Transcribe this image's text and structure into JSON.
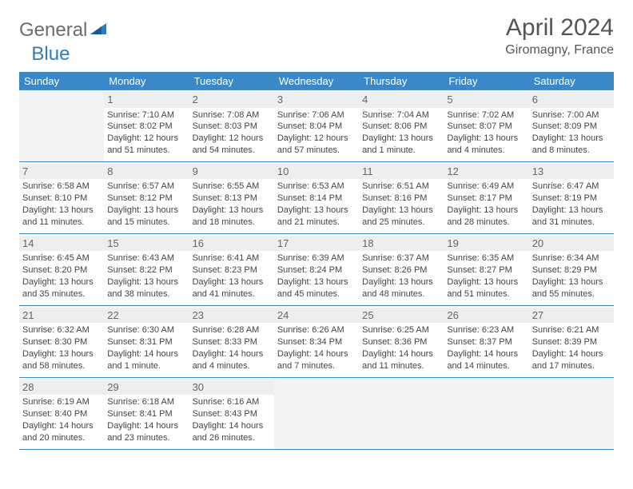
{
  "brand": {
    "word1": "General",
    "word2": "Blue"
  },
  "title": "April 2024",
  "location": "Giromagny, France",
  "colors": {
    "accent": "#3a88c8",
    "logo_gray": "#6b6b6b",
    "logo_blue": "#2f7cc0",
    "text": "#444444",
    "daynum_bg": "#eeeeee",
    "empty_bg": "#f3f3f3"
  },
  "dow": [
    "Sunday",
    "Monday",
    "Tuesday",
    "Wednesday",
    "Thursday",
    "Friday",
    "Saturday"
  ],
  "weeks": [
    [
      null,
      {
        "n": "1",
        "sr": "7:10 AM",
        "ss": "8:02 PM",
        "dl": "12 hours and 51 minutes."
      },
      {
        "n": "2",
        "sr": "7:08 AM",
        "ss": "8:03 PM",
        "dl": "12 hours and 54 minutes."
      },
      {
        "n": "3",
        "sr": "7:06 AM",
        "ss": "8:04 PM",
        "dl": "12 hours and 57 minutes."
      },
      {
        "n": "4",
        "sr": "7:04 AM",
        "ss": "8:06 PM",
        "dl": "13 hours and 1 minute."
      },
      {
        "n": "5",
        "sr": "7:02 AM",
        "ss": "8:07 PM",
        "dl": "13 hours and 4 minutes."
      },
      {
        "n": "6",
        "sr": "7:00 AM",
        "ss": "8:09 PM",
        "dl": "13 hours and 8 minutes."
      }
    ],
    [
      {
        "n": "7",
        "sr": "6:58 AM",
        "ss": "8:10 PM",
        "dl": "13 hours and 11 minutes."
      },
      {
        "n": "8",
        "sr": "6:57 AM",
        "ss": "8:12 PM",
        "dl": "13 hours and 15 minutes."
      },
      {
        "n": "9",
        "sr": "6:55 AM",
        "ss": "8:13 PM",
        "dl": "13 hours and 18 minutes."
      },
      {
        "n": "10",
        "sr": "6:53 AM",
        "ss": "8:14 PM",
        "dl": "13 hours and 21 minutes."
      },
      {
        "n": "11",
        "sr": "6:51 AM",
        "ss": "8:16 PM",
        "dl": "13 hours and 25 minutes."
      },
      {
        "n": "12",
        "sr": "6:49 AM",
        "ss": "8:17 PM",
        "dl": "13 hours and 28 minutes."
      },
      {
        "n": "13",
        "sr": "6:47 AM",
        "ss": "8:19 PM",
        "dl": "13 hours and 31 minutes."
      }
    ],
    [
      {
        "n": "14",
        "sr": "6:45 AM",
        "ss": "8:20 PM",
        "dl": "13 hours and 35 minutes."
      },
      {
        "n": "15",
        "sr": "6:43 AM",
        "ss": "8:22 PM",
        "dl": "13 hours and 38 minutes."
      },
      {
        "n": "16",
        "sr": "6:41 AM",
        "ss": "8:23 PM",
        "dl": "13 hours and 41 minutes."
      },
      {
        "n": "17",
        "sr": "6:39 AM",
        "ss": "8:24 PM",
        "dl": "13 hours and 45 minutes."
      },
      {
        "n": "18",
        "sr": "6:37 AM",
        "ss": "8:26 PM",
        "dl": "13 hours and 48 minutes."
      },
      {
        "n": "19",
        "sr": "6:35 AM",
        "ss": "8:27 PM",
        "dl": "13 hours and 51 minutes."
      },
      {
        "n": "20",
        "sr": "6:34 AM",
        "ss": "8:29 PM",
        "dl": "13 hours and 55 minutes."
      }
    ],
    [
      {
        "n": "21",
        "sr": "6:32 AM",
        "ss": "8:30 PM",
        "dl": "13 hours and 58 minutes."
      },
      {
        "n": "22",
        "sr": "6:30 AM",
        "ss": "8:31 PM",
        "dl": "14 hours and 1 minute."
      },
      {
        "n": "23",
        "sr": "6:28 AM",
        "ss": "8:33 PM",
        "dl": "14 hours and 4 minutes."
      },
      {
        "n": "24",
        "sr": "6:26 AM",
        "ss": "8:34 PM",
        "dl": "14 hours and 7 minutes."
      },
      {
        "n": "25",
        "sr": "6:25 AM",
        "ss": "8:36 PM",
        "dl": "14 hours and 11 minutes."
      },
      {
        "n": "26",
        "sr": "6:23 AM",
        "ss": "8:37 PM",
        "dl": "14 hours and 14 minutes."
      },
      {
        "n": "27",
        "sr": "6:21 AM",
        "ss": "8:39 PM",
        "dl": "14 hours and 17 minutes."
      }
    ],
    [
      {
        "n": "28",
        "sr": "6:19 AM",
        "ss": "8:40 PM",
        "dl": "14 hours and 20 minutes."
      },
      {
        "n": "29",
        "sr": "6:18 AM",
        "ss": "8:41 PM",
        "dl": "14 hours and 23 minutes."
      },
      {
        "n": "30",
        "sr": "6:16 AM",
        "ss": "8:43 PM",
        "dl": "14 hours and 26 minutes."
      },
      null,
      null,
      null,
      null
    ]
  ],
  "labels": {
    "sunrise": "Sunrise:",
    "sunset": "Sunset:",
    "daylight": "Daylight:"
  }
}
